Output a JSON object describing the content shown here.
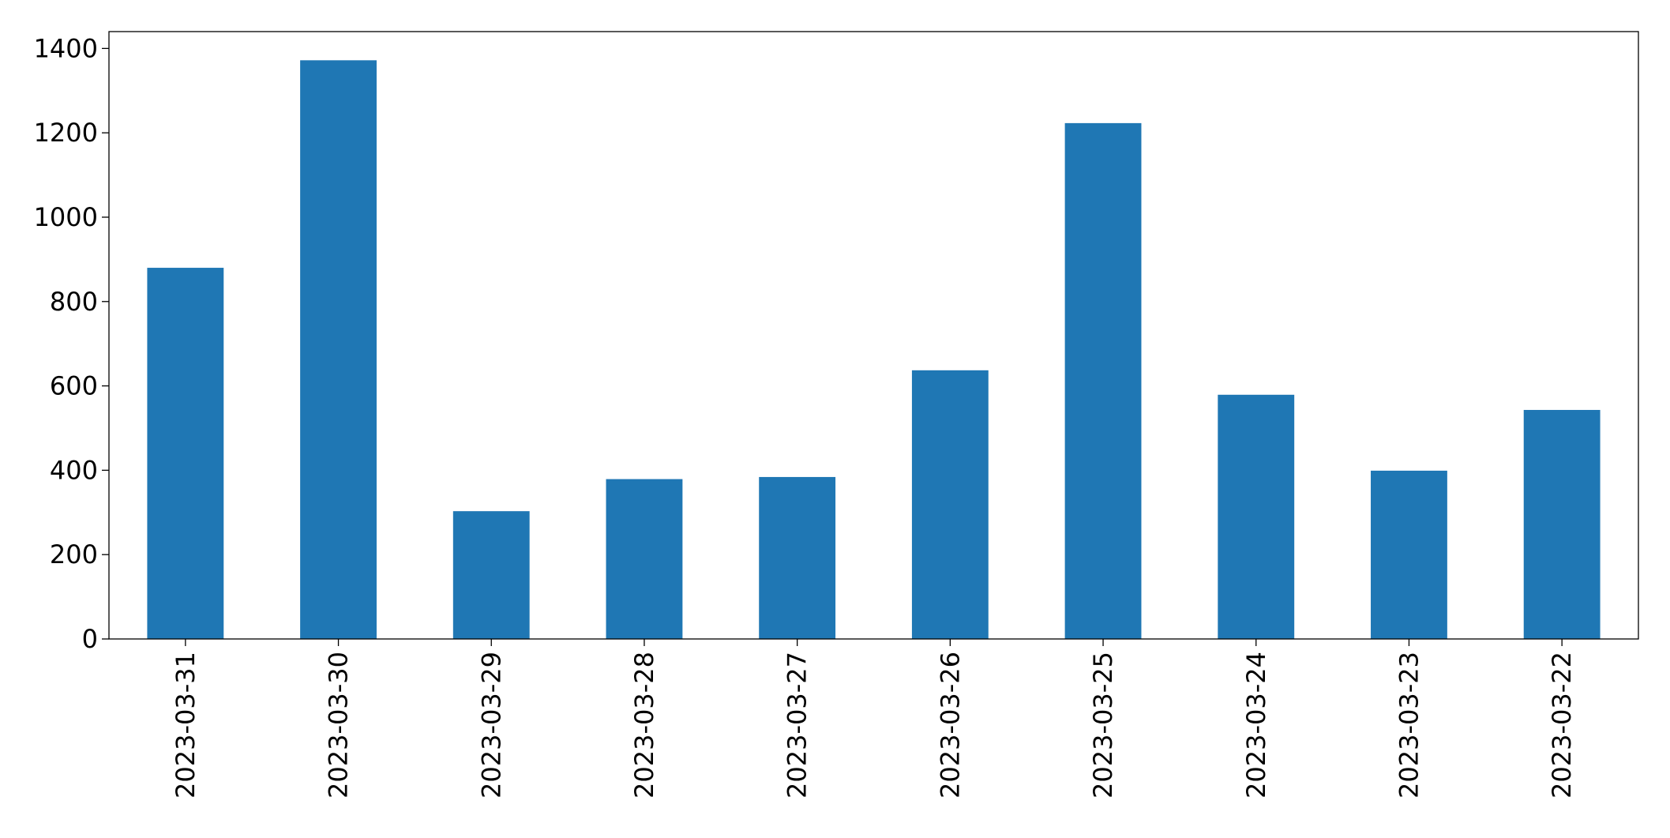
{
  "chart_data": {
    "type": "bar",
    "categories": [
      "2023-03-31",
      "2023-03-30",
      "2023-03-29",
      "2023-03-28",
      "2023-03-27",
      "2023-03-26",
      "2023-03-25",
      "2023-03-24",
      "2023-03-23",
      "2023-03-22"
    ],
    "values": [
      880,
      1372,
      303,
      379,
      384,
      637,
      1223,
      579,
      399,
      543
    ],
    "color": "#1f77b4",
    "ylim": [
      0,
      1440
    ],
    "yticks": [
      0,
      200,
      400,
      600,
      800,
      1000,
      1200,
      1400
    ],
    "grid": false
  }
}
